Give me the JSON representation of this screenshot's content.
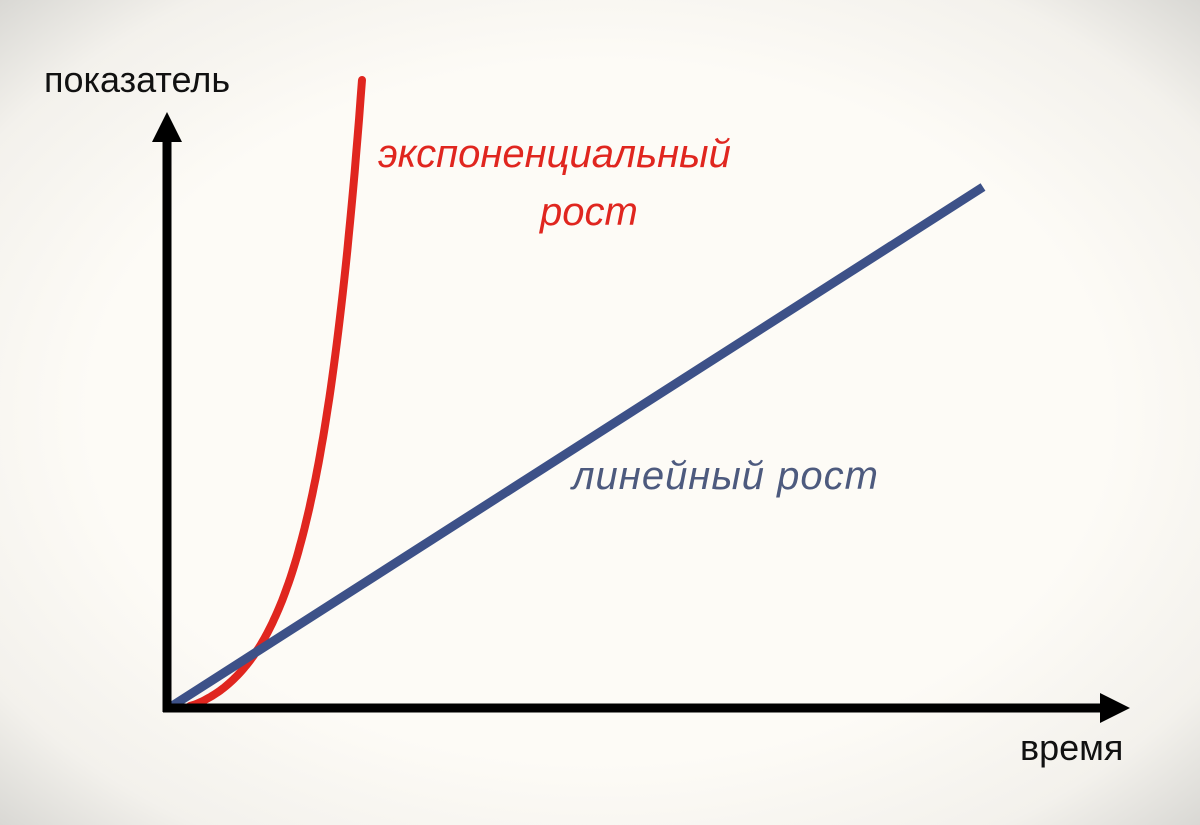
{
  "chart_data": {
    "type": "line",
    "title": "",
    "ylabel": "показатель",
    "xlabel": "время",
    "grid": false,
    "series": [
      {
        "name_line1": "экспоненциальный",
        "name_line2": "рост",
        "shape": "exponential",
        "color": "#e0261f"
      },
      {
        "name": "линейный рост",
        "shape": "linear",
        "color": "#3d5188"
      }
    ],
    "axis_color": "#000000"
  }
}
